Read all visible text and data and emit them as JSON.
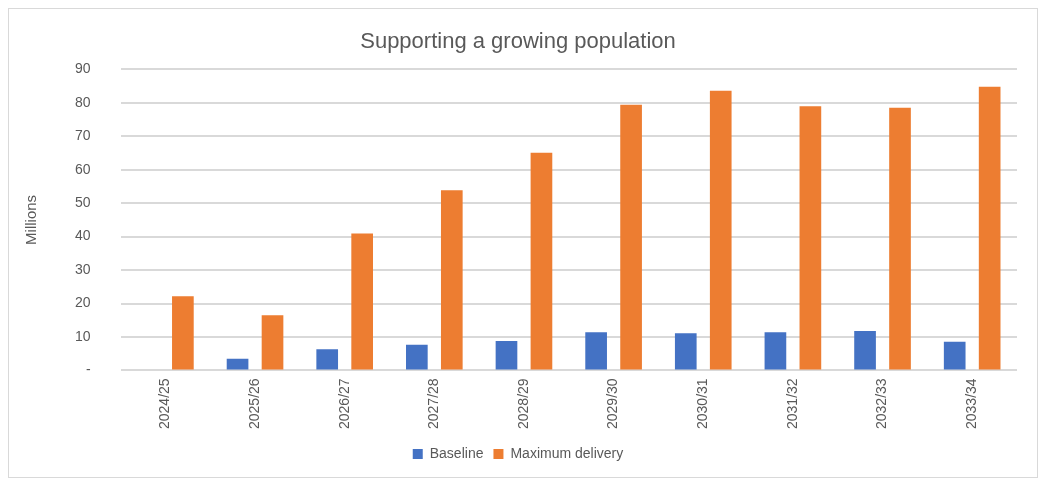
{
  "chart_data": {
    "type": "bar",
    "title": "Supporting a growing population",
    "ylabel": "Millions",
    "categories": [
      "2024/25",
      "2025/26",
      "2026/27",
      "2027/28",
      "2028/29",
      "2029/30",
      "2030/31",
      "2031/32",
      "2032/33",
      "2033/34"
    ],
    "series": [
      {
        "name": "Baseline",
        "color": "#4472c4",
        "values": [
          0,
          3.5,
          6.3,
          7.7,
          8.8,
          11.4,
          11.1,
          11.4,
          11.8,
          8.6
        ]
      },
      {
        "name": "Maximum delivery",
        "color": "#ed7d31",
        "values": [
          22.2,
          16.5,
          40.9,
          53.9,
          65.1,
          79.4,
          83.6,
          79.0,
          78.5,
          84.8
        ]
      }
    ],
    "ylim": [
      0,
      90
    ],
    "yticks": [
      {
        "value": 0,
        "label": "-"
      },
      10,
      20,
      30,
      40,
      50,
      60,
      70,
      80,
      90
    ],
    "grid": "y",
    "legend": "bottom"
  }
}
